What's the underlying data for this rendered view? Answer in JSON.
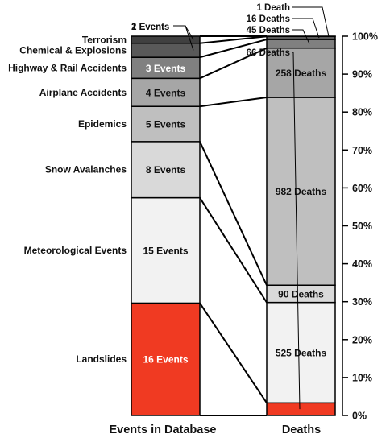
{
  "chart_data": {
    "type": "stacked-bar",
    "ylim": [
      0,
      100
    ],
    "yticks": [
      0,
      10,
      20,
      30,
      40,
      50,
      60,
      70,
      80,
      90,
      100
    ],
    "ytick_labels": [
      "0%",
      "10%",
      "20%",
      "30%",
      "40%",
      "50%",
      "60%",
      "70%",
      "80%",
      "90%",
      "100%"
    ],
    "x_labels": {
      "events": "Events in Database",
      "deaths": "Deaths"
    },
    "categories": [
      {
        "name": "Landslides",
        "events": 16,
        "event_label": "16 Events",
        "deaths": 66,
        "death_label": "66 Deaths",
        "color": "#f03a22",
        "text_color": "#ffffff"
      },
      {
        "name": "Meteorological Events",
        "events": 15,
        "event_label": "15 Events",
        "deaths": 525,
        "death_label": "525 Deaths",
        "color": "#f2f2f2",
        "text_color": "#111111"
      },
      {
        "name": "Snow Avalanches",
        "events": 8,
        "event_label": "8 Events",
        "deaths": 90,
        "death_label": "90 Deaths",
        "color": "#d9d9d9",
        "text_color": "#111111"
      },
      {
        "name": "Epidemics",
        "events": 5,
        "event_label": "5 Events",
        "deaths": 982,
        "death_label": "982 Deaths",
        "color": "#bfbfbf",
        "text_color": "#111111"
      },
      {
        "name": "Airplane Accidents",
        "events": 4,
        "event_label": "4 Events",
        "deaths": 258,
        "death_label": "258 Deaths",
        "color": "#a6a6a6",
        "text_color": "#111111"
      },
      {
        "name": "Highway & Rail Accidents",
        "events": 3,
        "event_label": "3 Events",
        "deaths": 45,
        "death_label": "45 Deaths",
        "color": "#808080",
        "text_color": "#ffffff"
      },
      {
        "name": "Chemical & Explosions",
        "events": 2,
        "event_label": "2 Events",
        "deaths": 16,
        "death_label": "16 Deaths",
        "color": "#595959",
        "text_color": "#ffffff"
      },
      {
        "name": "Terrorism",
        "events": 1,
        "event_label": "1 Event",
        "deaths": 1,
        "death_label": "1 Death",
        "color": "#404040",
        "text_color": "#ffffff"
      }
    ]
  }
}
